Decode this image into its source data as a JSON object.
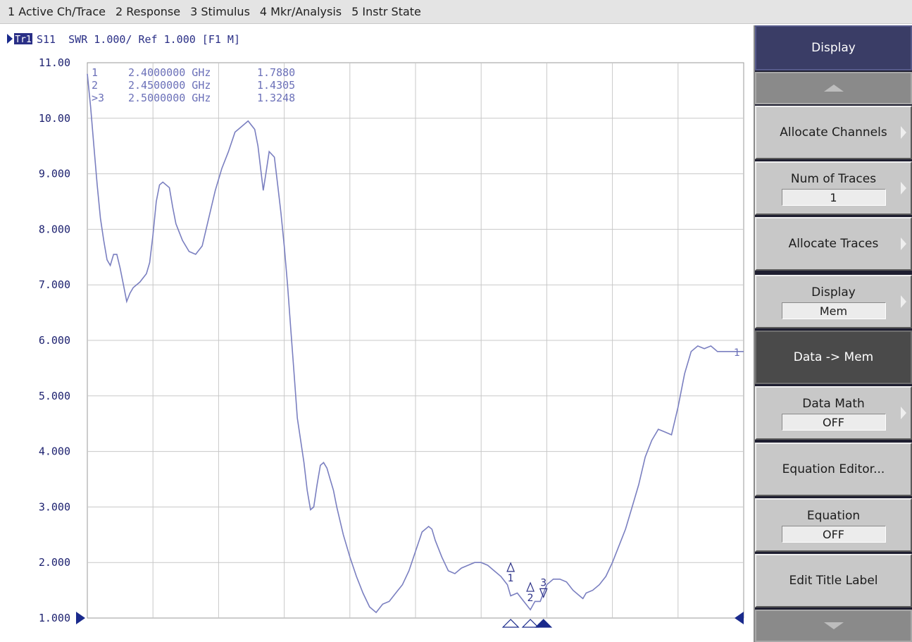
{
  "menu": [
    {
      "label": "1 Active Ch/Trace"
    },
    {
      "label": "2 Response"
    },
    {
      "label": "3 Stimulus"
    },
    {
      "label": "4 Mkr/Analysis"
    },
    {
      "label": "5 Instr State"
    }
  ],
  "trace_header": {
    "badge": "Tr1",
    "text": "S11  SWR 1.000/ Ref 1.000 [F1 M]"
  },
  "markers_table": [
    {
      "id": "1",
      "freq": "2.4000000 GHz",
      "value": "1.7880"
    },
    {
      "id": "2",
      "freq": "2.4500000 GHz",
      "value": "1.4305"
    },
    {
      "id": ">3",
      "freq": "2.5000000 GHz",
      "value": "1.3248"
    }
  ],
  "softkeys": {
    "title": "Display",
    "allocate_channels": "Allocate Channels",
    "num_traces": {
      "label": "Num of Traces",
      "value": "1"
    },
    "allocate_traces": "Allocate Traces",
    "display_mode": {
      "label": "Display",
      "value": "Mem"
    },
    "data_to_mem": "Data -> Mem",
    "data_math": {
      "label": "Data Math",
      "value": "OFF"
    },
    "equation_editor": "Equation Editor...",
    "equation": {
      "label": "Equation",
      "value": "OFF"
    },
    "edit_title": "Edit Title Label",
    "scroll_up_icon": "triangle-up-icon",
    "scroll_down_icon": "triangle-down-icon"
  },
  "colors": {
    "trace": "#7a7fc0",
    "header_text": "#2a2f86",
    "marker_text": "#6b70b8",
    "grid": "#c8c8c8",
    "ref_marker": "#1a2a8c"
  },
  "chart_data": {
    "type": "line",
    "title": "",
    "xlabel": "",
    "ylabel": "SWR",
    "ylim": [
      1.0,
      11.0
    ],
    "xlim": [
      0,
      10
    ],
    "grid": true,
    "yticks": [
      "11.00",
      "10.00",
      "9.000",
      "8.000",
      "7.000",
      "6.000",
      "5.000",
      "4.000",
      "3.000",
      "2.000",
      "1.000"
    ],
    "ref_value": "1.000",
    "series": [
      {
        "points": [
          [
            0.0,
            10.8
          ],
          [
            0.05,
            10.2
          ],
          [
            0.1,
            9.5
          ],
          [
            0.15,
            8.8
          ],
          [
            0.2,
            8.2
          ],
          [
            0.25,
            7.8
          ],
          [
            0.3,
            7.45
          ],
          [
            0.35,
            7.35
          ],
          [
            0.4,
            7.55
          ],
          [
            0.45,
            7.55
          ],
          [
            0.5,
            7.3
          ],
          [
            0.55,
            7.0
          ],
          [
            0.6,
            6.7
          ],
          [
            0.65,
            6.85
          ],
          [
            0.7,
            6.95
          ],
          [
            0.8,
            7.05
          ],
          [
            0.9,
            7.2
          ],
          [
            0.95,
            7.4
          ],
          [
            1.0,
            7.9
          ],
          [
            1.05,
            8.5
          ],
          [
            1.1,
            8.8
          ],
          [
            1.15,
            8.85
          ],
          [
            1.25,
            8.75
          ],
          [
            1.3,
            8.4
          ],
          [
            1.35,
            8.1
          ],
          [
            1.45,
            7.8
          ],
          [
            1.55,
            7.6
          ],
          [
            1.65,
            7.55
          ],
          [
            1.75,
            7.7
          ],
          [
            1.85,
            8.2
          ],
          [
            1.95,
            8.7
          ],
          [
            2.05,
            9.1
          ],
          [
            2.15,
            9.4
          ],
          [
            2.25,
            9.75
          ],
          [
            2.35,
            9.85
          ],
          [
            2.45,
            9.95
          ],
          [
            2.55,
            9.8
          ],
          [
            2.6,
            9.5
          ],
          [
            2.65,
            9.0
          ],
          [
            2.68,
            8.7
          ],
          [
            2.72,
            9.0
          ],
          [
            2.77,
            9.4
          ],
          [
            2.85,
            9.3
          ],
          [
            2.9,
            8.8
          ],
          [
            2.95,
            8.3
          ],
          [
            3.0,
            7.7
          ],
          [
            3.05,
            7.0
          ],
          [
            3.1,
            6.2
          ],
          [
            3.15,
            5.4
          ],
          [
            3.2,
            4.6
          ],
          [
            3.25,
            4.2
          ],
          [
            3.3,
            3.8
          ],
          [
            3.35,
            3.3
          ],
          [
            3.4,
            2.95
          ],
          [
            3.45,
            3.0
          ],
          [
            3.5,
            3.4
          ],
          [
            3.55,
            3.75
          ],
          [
            3.6,
            3.8
          ],
          [
            3.65,
            3.7
          ],
          [
            3.7,
            3.5
          ],
          [
            3.75,
            3.3
          ],
          [
            3.8,
            3.0
          ],
          [
            3.9,
            2.5
          ],
          [
            4.0,
            2.1
          ],
          [
            4.1,
            1.75
          ],
          [
            4.2,
            1.45
          ],
          [
            4.3,
            1.2
          ],
          [
            4.4,
            1.1
          ],
          [
            4.5,
            1.25
          ],
          [
            4.6,
            1.3
          ],
          [
            4.7,
            1.45
          ],
          [
            4.8,
            1.6
          ],
          [
            4.9,
            1.85
          ],
          [
            5.0,
            2.2
          ],
          [
            5.1,
            2.55
          ],
          [
            5.2,
            2.65
          ],
          [
            5.25,
            2.6
          ],
          [
            5.3,
            2.4
          ],
          [
            5.4,
            2.1
          ],
          [
            5.5,
            1.85
          ],
          [
            5.6,
            1.8
          ],
          [
            5.7,
            1.9
          ],
          [
            5.8,
            1.95
          ],
          [
            5.9,
            2.0
          ],
          [
            6.0,
            2.0
          ],
          [
            6.1,
            1.95
          ],
          [
            6.2,
            1.85
          ],
          [
            6.3,
            1.75
          ],
          [
            6.4,
            1.6
          ],
          [
            6.45,
            1.4
          ],
          [
            6.55,
            1.45
          ],
          [
            6.65,
            1.3
          ],
          [
            6.75,
            1.15
          ],
          [
            6.82,
            1.3
          ],
          [
            6.9,
            1.3
          ],
          [
            7.0,
            1.6
          ],
          [
            7.1,
            1.7
          ],
          [
            7.2,
            1.7
          ],
          [
            7.3,
            1.65
          ],
          [
            7.4,
            1.5
          ],
          [
            7.5,
            1.4
          ],
          [
            7.55,
            1.35
          ],
          [
            7.6,
            1.45
          ],
          [
            7.7,
            1.5
          ],
          [
            7.8,
            1.6
          ],
          [
            7.9,
            1.75
          ],
          [
            8.0,
            2.0
          ],
          [
            8.1,
            2.3
          ],
          [
            8.2,
            2.6
          ],
          [
            8.3,
            3.0
          ],
          [
            8.4,
            3.4
          ],
          [
            8.5,
            3.9
          ],
          [
            8.6,
            4.2
          ],
          [
            8.7,
            4.4
          ],
          [
            8.8,
            4.35
          ],
          [
            8.9,
            4.3
          ],
          [
            9.0,
            4.8
          ],
          [
            9.1,
            5.4
          ],
          [
            9.2,
            5.8
          ],
          [
            9.3,
            5.9
          ],
          [
            9.4,
            5.85
          ],
          [
            9.5,
            5.9
          ],
          [
            9.6,
            5.8
          ],
          [
            9.7,
            5.8
          ],
          [
            9.8,
            5.8
          ],
          [
            9.9,
            5.8
          ],
          [
            10.0,
            5.8
          ]
        ]
      }
    ],
    "markers": [
      {
        "label": "1",
        "x": 6.45,
        "y": 1.788
      },
      {
        "label": "2",
        "x": 6.75,
        "y": 1.4305
      },
      {
        "label": "3",
        "x": 6.95,
        "y": 1.3248
      }
    ],
    "trace_end_label": "1"
  }
}
